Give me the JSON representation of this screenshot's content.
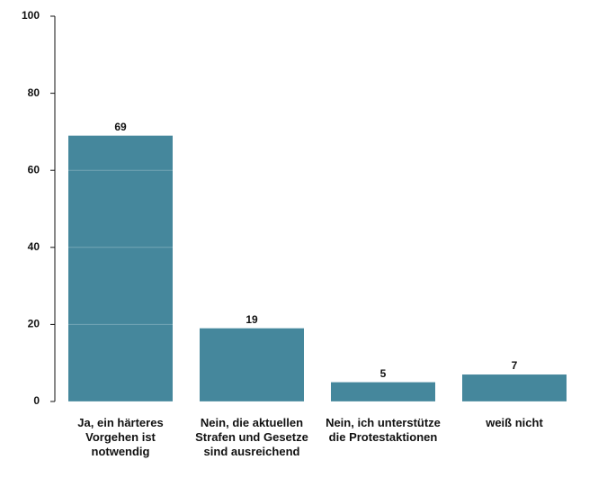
{
  "chart_data": {
    "type": "bar",
    "categories": [
      "Ja, ein härteres Vorgehen ist notwendig",
      "Nein, die aktuellen Strafen und Gesetze sind ausreichend",
      "Nein, ich unterstütze die Protestaktionen",
      "weiß nicht"
    ],
    "values": [
      69,
      19,
      5,
      7
    ],
    "color": "#45879c",
    "ylim": [
      0,
      100
    ],
    "yticks": [
      0,
      20,
      40,
      60,
      80,
      100
    ],
    "grid": true
  }
}
